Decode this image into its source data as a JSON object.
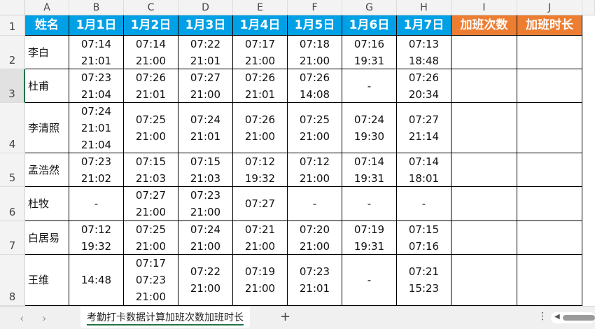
{
  "columns": [
    "A",
    "B",
    "C",
    "D",
    "E",
    "F",
    "G",
    "H",
    "I",
    "J"
  ],
  "rows": [
    "1",
    "2",
    "3",
    "4",
    "5",
    "6",
    "7",
    "8"
  ],
  "colors": {
    "header_blue": "#00a0e6",
    "header_orange": "#ed7d31"
  },
  "header": [
    "姓名",
    "1月1日",
    "1月2日",
    "1月3日",
    "1月4日",
    "1月5日",
    "1月6日",
    "1月7日",
    "加班次数",
    "加班时长"
  ],
  "data": [
    {
      "name": "李白",
      "days": [
        [
          "07:14",
          "21:01"
        ],
        [
          "07:14",
          "21:00"
        ],
        [
          "07:22",
          "21:01"
        ],
        [
          "07:17",
          "21:00"
        ],
        [
          "07:18",
          "21:00"
        ],
        [
          "07:16",
          "19:31"
        ],
        [
          "07:13",
          "18:48"
        ]
      ]
    },
    {
      "name": "杜甫",
      "days": [
        [
          "07:23",
          "21:04"
        ],
        [
          "07:26",
          "21:01"
        ],
        [
          "07:27",
          "21:00"
        ],
        [
          "07:26",
          "21:01"
        ],
        [
          "07:26",
          "14:08"
        ],
        [
          "-"
        ],
        [
          "07:26",
          "20:34"
        ]
      ]
    },
    {
      "name": "李清照",
      "days": [
        [
          "07:24",
          "21:01",
          "21:04"
        ],
        [
          "07:25",
          "21:00"
        ],
        [
          "07:24",
          "21:01"
        ],
        [
          "07:26",
          "21:00"
        ],
        [
          "07:25",
          "21:00"
        ],
        [
          "07:24",
          "19:30"
        ],
        [
          "07:27",
          "21:14"
        ]
      ]
    },
    {
      "name": "孟浩然",
      "days": [
        [
          "07:23",
          "21:02"
        ],
        [
          "07:15",
          "21:03"
        ],
        [
          "07:15",
          "21:03"
        ],
        [
          "07:12",
          "19:32"
        ],
        [
          "07:12",
          "21:00"
        ],
        [
          "07:14",
          "19:31"
        ],
        [
          "07:14",
          "18:01"
        ]
      ]
    },
    {
      "name": "杜牧",
      "days": [
        [
          "-"
        ],
        [
          "07:27",
          "21:00"
        ],
        [
          "07:23",
          "21:00"
        ],
        [
          "07:27"
        ],
        [
          "-"
        ],
        [
          "-"
        ],
        [
          "-"
        ]
      ]
    },
    {
      "name": "白居易",
      "days": [
        [
          "07:12",
          "19:32"
        ],
        [
          "07:25",
          "21:00"
        ],
        [
          "07:24",
          "21:00"
        ],
        [
          "07:21",
          "21:00"
        ],
        [
          "07:20",
          "21:00"
        ],
        [
          "07:19",
          "19:31"
        ],
        [
          "07:15",
          "07:16"
        ]
      ]
    },
    {
      "name": "王维",
      "days": [
        [
          "14:48"
        ],
        [
          "07:17",
          "07:23",
          "21:00"
        ],
        [
          "07:22",
          "21:00"
        ],
        [
          "07:19",
          "21:00"
        ],
        [
          "07:23",
          "21:01"
        ],
        [
          "-"
        ],
        [
          "07:21",
          "15:23"
        ]
      ]
    }
  ],
  "tabbar": {
    "prev": "‹",
    "next": "›",
    "sheet_name": "考勤打卡数据计算加班次数加班时长",
    "add": "+",
    "more": "⋮"
  }
}
